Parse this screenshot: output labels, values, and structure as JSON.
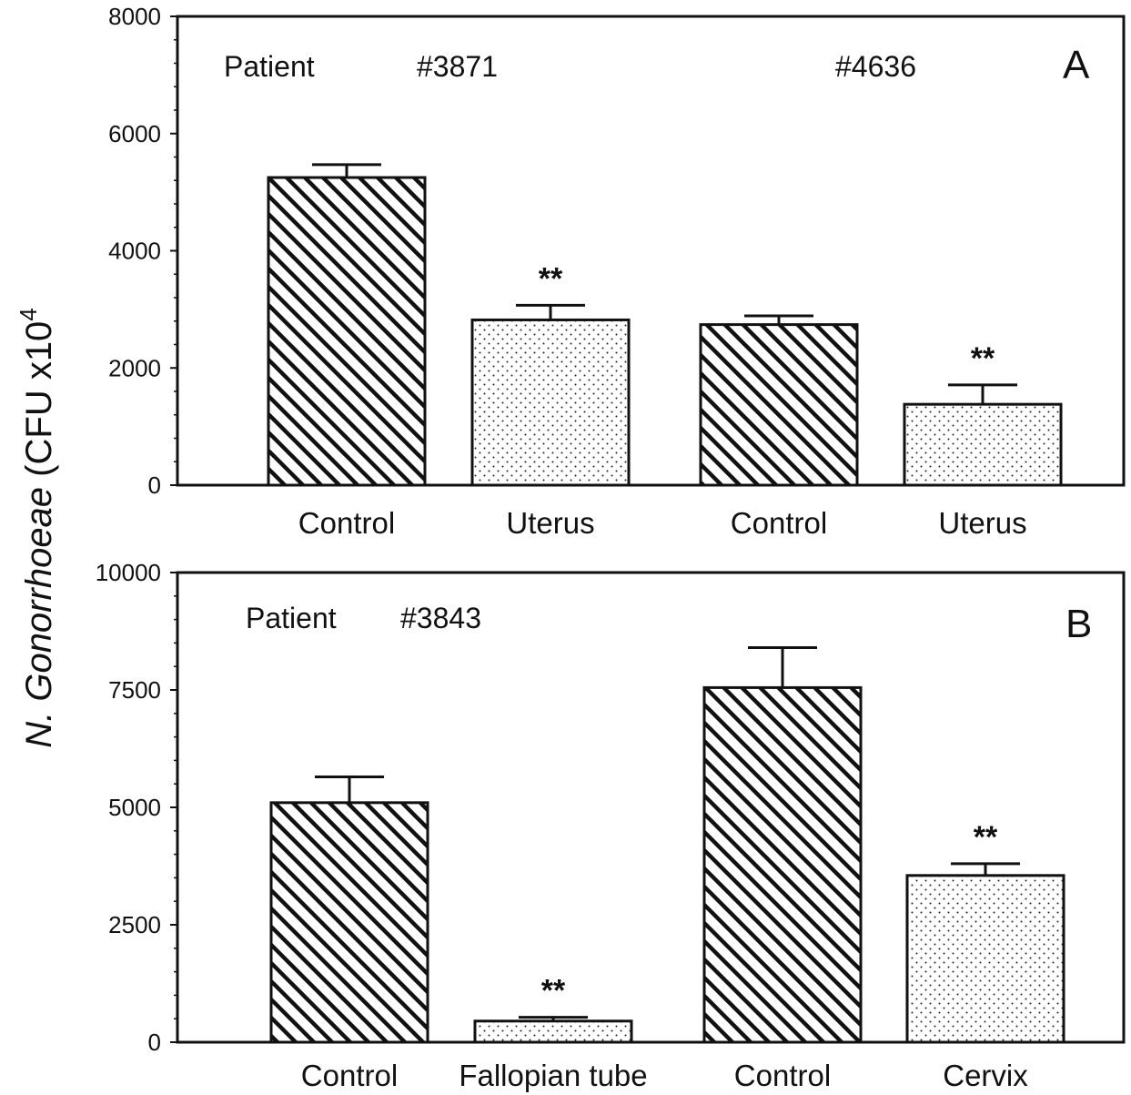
{
  "ylabel_prefix": "N. Gonorrhoeae",
  "ylabel_unit": " (CFU x10",
  "ylabel_exp": "4",
  "ylabel_end": "",
  "chart_data": [
    {
      "type": "bar",
      "panel": "A",
      "categories": [
        "Control",
        "Uterus",
        "Control",
        "Uterus"
      ],
      "values": [
        5250,
        2820,
        2740,
        1380
      ],
      "errors": [
        220,
        250,
        150,
        330
      ],
      "significance": [
        "",
        "**",
        "",
        "**"
      ],
      "patterns": [
        "hatch",
        "dots",
        "hatch",
        "dots"
      ],
      "ylim": [
        0,
        8000
      ],
      "yticks": [
        0,
        2000,
        4000,
        6000,
        8000
      ],
      "annotations": [
        "Patient",
        "#3871",
        "#4636"
      ],
      "grid": false
    },
    {
      "type": "bar",
      "panel": "B",
      "categories": [
        "Control",
        "Fallopian tube",
        "Control",
        "Cervix"
      ],
      "values": [
        5100,
        450,
        7550,
        3550
      ],
      "errors": [
        550,
        80,
        850,
        250
      ],
      "significance": [
        "",
        "**",
        "",
        "**"
      ],
      "patterns": [
        "hatch",
        "dots",
        "hatch",
        "dots"
      ],
      "ylim": [
        0,
        10000
      ],
      "yticks": [
        0,
        2500,
        5000,
        7500,
        10000
      ],
      "annotations": [
        "Patient",
        "#3843"
      ],
      "grid": false
    }
  ]
}
